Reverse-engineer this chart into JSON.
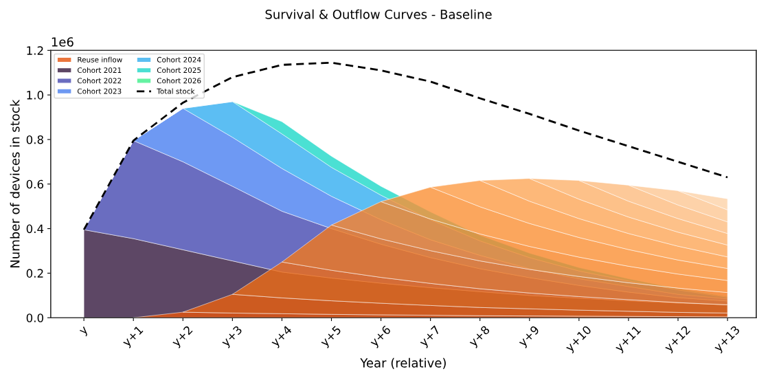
{
  "chart_data": [
    {
      "type": "area",
      "stacked": true,
      "title": "Survival & Outflow Curves - Baseline",
      "xlabel": "Year (relative)",
      "ylabel": "Number of devices in stock",
      "annotations": [
        "1e6"
      ],
      "categories": [
        "y",
        "y+1",
        "y+2",
        "y+3",
        "y+4",
        "y+5",
        "y+6",
        "y+7",
        "y+8",
        "y+9",
        "y+10",
        "y+11",
        "y+12",
        "y+13"
      ],
      "ylim": [
        0,
        1.2
      ],
      "yticks": [
        {
          "value": 0,
          "label": "0.0"
        },
        {
          "value": 0.2,
          "label": "0.2"
        },
        {
          "value": 0.4,
          "label": "0.4"
        },
        {
          "value": 0.6,
          "label": "0.6"
        },
        {
          "value": 0.8,
          "label": "0.8"
        },
        {
          "value": 1.0,
          "label": "1.0"
        },
        {
          "value": 1.2,
          "label": "1.2"
        }
      ],
      "legend": "top left",
      "grid": false,
      "series": [
        {
          "name": "Cohort 2021",
          "color": "#35193e",
          "values": [
            0.395,
            0.355,
            0.305,
            0.255,
            0.205,
            0.178,
            0.155,
            0.135,
            0.117,
            0.1,
            0.088,
            0.076,
            0.066,
            0.058
          ]
        },
        {
          "name": "Cohort 2022",
          "color": "#4548b0",
          "values": [
            0,
            0.44,
            0.395,
            0.335,
            0.273,
            0.222,
            0.175,
            0.135,
            0.103,
            0.08,
            0.057,
            0.039,
            0.024,
            0.017
          ]
        },
        {
          "name": "Cohort 2023",
          "color": "#4a80f0",
          "values": [
            0,
            0,
            0.24,
            0.22,
            0.192,
            0.145,
            0.11,
            0.08,
            0.06,
            0.04,
            0.03,
            0.025,
            0.015,
            0.01
          ]
        },
        {
          "name": "Cohort 2024",
          "color": "#33aef0",
          "values": [
            0,
            0,
            0,
            0.16,
            0.155,
            0.13,
            0.11,
            0.09,
            0.065,
            0.05,
            0.035,
            0.025,
            0.02,
            0.007
          ]
        },
        {
          "name": "Cohort 2025",
          "color": "#1ed8c8",
          "values": [
            0,
            0,
            0,
            0,
            0.055,
            0.05,
            0.04,
            0.035,
            0.025,
            0.02,
            0.015,
            0.01,
            0.005,
            0.003
          ]
        },
        {
          "name": "Cohort 2026",
          "color": "#3ef08c",
          "values": [
            null,
            null,
            null,
            null,
            null,
            null,
            null,
            null,
            null,
            null,
            null,
            null,
            null,
            null
          ]
        },
        {
          "name": "Total stock",
          "type": "line",
          "line_style": "dashed",
          "color": "#000000",
          "values": [
            0.395,
            0.795,
            0.965,
            1.08,
            1.135,
            1.145,
            1.11,
            1.06,
            0.985,
            0.915,
            0.84,
            0.77,
            0.7,
            0.63
          ]
        }
      ]
    },
    {
      "type": "area",
      "stacked": true,
      "tick_labels": false,
      "legend": "top left",
      "ylim": [
        0,
        1.2
      ],
      "series": [
        {
          "name": "Reuse inflow",
          "color": "#e6550d",
          "values": [
            null,
            0,
            0.025,
            0.021,
            0.018,
            0.015,
            0.013,
            0.011,
            0.009,
            0.008,
            0.007,
            0.006,
            0.005,
            0.004
          ]
        },
        {
          "color": "#ea600f",
          "values": [
            null,
            null,
            0,
            0.084,
            0.071,
            0.061,
            0.052,
            0.044,
            0.037,
            0.032,
            0.027,
            0.023,
            0.019,
            0.017
          ]
        },
        {
          "color": "#ef6c14",
          "values": [
            null,
            null,
            null,
            0,
            0.161,
            0.137,
            0.116,
            0.099,
            0.084,
            0.071,
            0.061,
            0.052,
            0.044,
            0.037
          ]
        },
        {
          "color": "#f3781c",
          "values": [
            null,
            null,
            null,
            null,
            0,
            0.203,
            0.173,
            0.147,
            0.125,
            0.106,
            0.09,
            0.076,
            0.065,
            0.055
          ]
        },
        {
          "color": "#f78427",
          "values": [
            null,
            null,
            null,
            null,
            null,
            0,
            0.167,
            0.142,
            0.121,
            0.103,
            0.087,
            0.074,
            0.063,
            0.054
          ]
        },
        {
          "color": "#fa9035",
          "values": [
            null,
            null,
            null,
            null,
            null,
            null,
            0,
            0.143,
            0.122,
            0.103,
            0.088,
            0.075,
            0.063,
            0.054
          ]
        },
        {
          "color": "#fc9b45",
          "values": [
            null,
            null,
            null,
            null,
            null,
            null,
            null,
            0,
            0.118,
            0.1,
            0.085,
            0.072,
            0.062,
            0.052
          ]
        },
        {
          "color": "#fda658",
          "values": [
            null,
            null,
            null,
            null,
            null,
            null,
            null,
            null,
            0,
            0.102,
            0.087,
            0.074,
            0.063,
            0.053
          ]
        },
        {
          "color": "#fdb16b",
          "values": [
            null,
            null,
            null,
            null,
            null,
            null,
            null,
            null,
            null,
            0,
            0.084,
            0.071,
            0.061,
            0.052
          ]
        },
        {
          "color": "#fdbc7f",
          "values": [
            null,
            null,
            null,
            null,
            null,
            null,
            null,
            null,
            null,
            null,
            0,
            0.072,
            0.061,
            0.052
          ]
        },
        {
          "color": "#fdc793",
          "values": [
            null,
            null,
            null,
            null,
            null,
            null,
            null,
            null,
            null,
            null,
            null,
            0,
            0.064,
            0.054
          ]
        },
        {
          "color": "#fdd2a8",
          "values": [
            null,
            null,
            null,
            null,
            null,
            null,
            null,
            null,
            null,
            null,
            null,
            null,
            0,
            0.05
          ]
        }
      ]
    }
  ]
}
